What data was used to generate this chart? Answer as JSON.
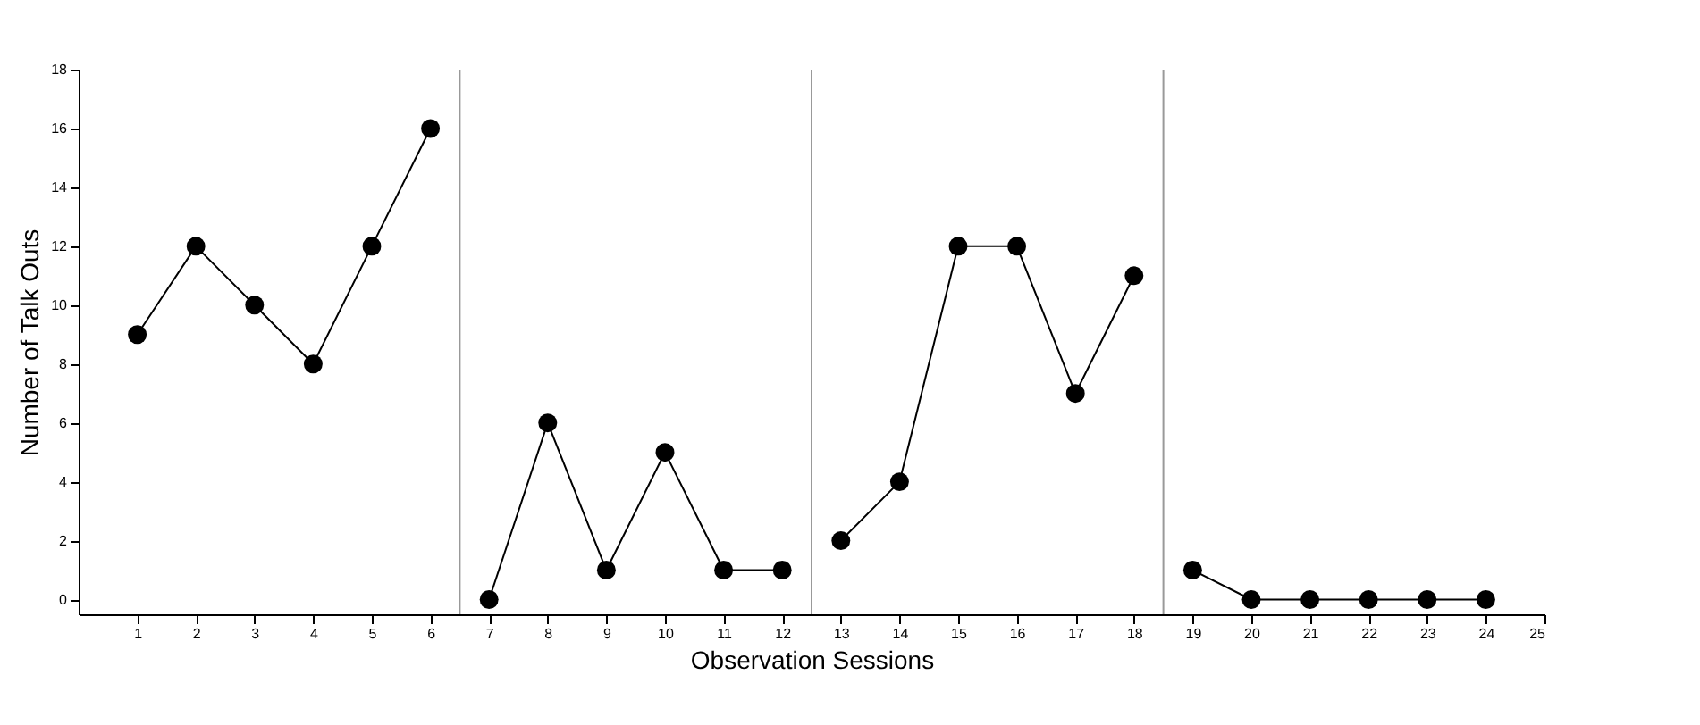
{
  "chart_data": {
    "type": "line",
    "xlabel": "Observation Sessions",
    "ylabel": "Number of Talk Outs",
    "series": [
      {
        "color": "#000000",
        "x": [
          1,
          2,
          3,
          4,
          5,
          6
        ],
        "values": [
          9,
          12,
          10,
          8,
          12,
          16
        ]
      },
      {
        "color": "#000000",
        "x": [
          7,
          8,
          9,
          10,
          11,
          12
        ],
        "values": [
          0,
          6,
          1,
          5,
          1,
          1
        ]
      },
      {
        "color": "#000000",
        "x": [
          13,
          14,
          15,
          16,
          17,
          18
        ],
        "values": [
          2,
          4,
          12,
          12,
          7,
          11
        ]
      },
      {
        "color": "#000000",
        "x": [
          19,
          20,
          21,
          22,
          23,
          24
        ],
        "values": [
          1,
          0,
          0,
          0,
          0,
          0
        ]
      }
    ],
    "xlim": [
      0,
      25
    ],
    "xticks": [
      1,
      2,
      3,
      4,
      5,
      6,
      7,
      8,
      9,
      10,
      11,
      12,
      13,
      14,
      15,
      16,
      17,
      18,
      19,
      20,
      21,
      22,
      23,
      24,
      25
    ],
    "ylim": [
      -0.5,
      18
    ],
    "yticks": [
      0,
      2,
      4,
      6,
      8,
      10,
      12,
      14,
      16,
      18
    ],
    "ref_lines": [
      {
        "axis": "x",
        "value": 6.5,
        "color": "#999999"
      },
      {
        "axis": "x",
        "value": 12.5,
        "color": "#999999"
      },
      {
        "axis": "x",
        "value": 18.5,
        "color": "#999999"
      }
    ],
    "grid": false,
    "legend": false,
    "marker": "circle",
    "line_style": "solid"
  }
}
